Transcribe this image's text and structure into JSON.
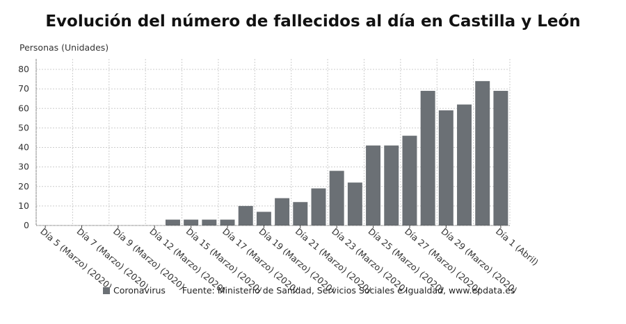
{
  "chart_data": {
    "type": "bar",
    "title": "Evolución del número de fallecidos al día en Castilla y León",
    "ylabel": "Personas (Unidades)",
    "xlabel": "",
    "ylim": [
      0,
      80
    ],
    "yticks": [
      0,
      10,
      20,
      30,
      40,
      50,
      60,
      70,
      80
    ],
    "grid": true,
    "legend_placement": "bottom",
    "categories": [
      "Día 5 (Marzo) (2020)",
      "",
      "Día 7 (Marzo) (2020)",
      "",
      "Día 9 (Marzo) (2020)",
      "",
      "Día 12 (Marzo) (2020)",
      "",
      "Día 15 (Marzo) (2020)",
      "",
      "Día 17 (Marzo) (2020)",
      "",
      "Día 19 (Marzo) (2020)",
      "",
      "Día 21 (Marzo) (2020)",
      "",
      "Día 23 (Marzo) (2020)",
      "",
      "Día 25 (Marzo) (2020)",
      "",
      "Día 27 (Marzo) (2020)",
      "",
      "Día 29 (Marzo) (2020)",
      "",
      "",
      "Día 1 (Abril)"
    ],
    "series": [
      {
        "name": "Coronavirus",
        "color": "#6b7075",
        "values": [
          0,
          0,
          0,
          0,
          0,
          0,
          0,
          3,
          3,
          3,
          3,
          10,
          7,
          14,
          12,
          19,
          28,
          22,
          41,
          41,
          46,
          69,
          59,
          62,
          74,
          69
        ]
      }
    ]
  },
  "legend": {
    "series_label": "Coronavirus",
    "source": "Fuente: Ministerio de Sanidad, Servicios Sociales e Igualdad, www.epdata.es"
  }
}
